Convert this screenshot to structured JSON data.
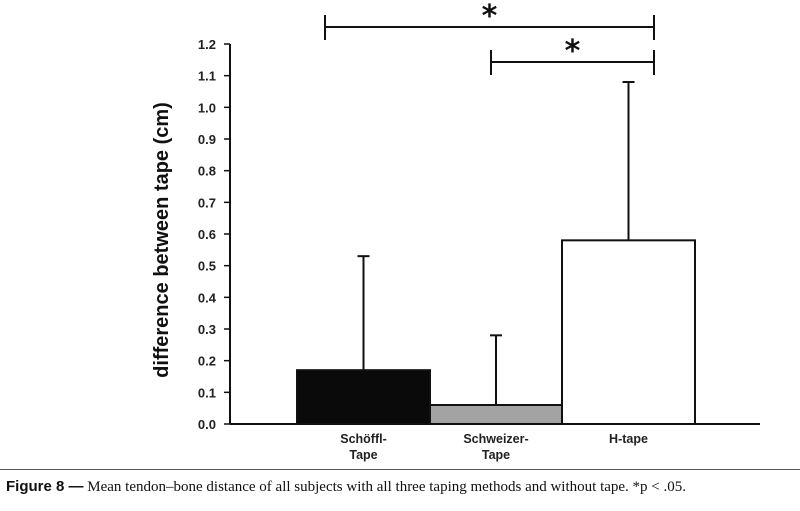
{
  "chart_data": {
    "type": "bar",
    "categories": [
      [
        "Schöffl-",
        "Tape"
      ],
      [
        "Schweizer-",
        "Tape"
      ],
      [
        "H-tape"
      ]
    ],
    "values": [
      0.17,
      0.06,
      0.58
    ],
    "error_upper": [
      0.53,
      0.28,
      1.08
    ],
    "bar_colors": [
      "#0a0a0a",
      "#a3a3a3",
      "#ffffff"
    ],
    "ylabel": "difference between tape (cm)",
    "ylim": [
      0,
      1.2
    ],
    "yticks": [
      "0.0",
      "0.1",
      "0.2",
      "0.3",
      "0.4",
      "0.5",
      "0.6",
      "0.7",
      "0.8",
      "0.9",
      "1.0",
      "1.1",
      "1.2"
    ],
    "significance": [
      {
        "from": 0,
        "to": 2,
        "label": "*"
      },
      {
        "from": 1,
        "to": 2,
        "label": "*"
      }
    ],
    "grid": false
  },
  "caption": {
    "label": "Figure 8 —",
    "text": " Mean tendon–bone distance of all subjects with all three taping methods and without tape. *p < .05."
  }
}
